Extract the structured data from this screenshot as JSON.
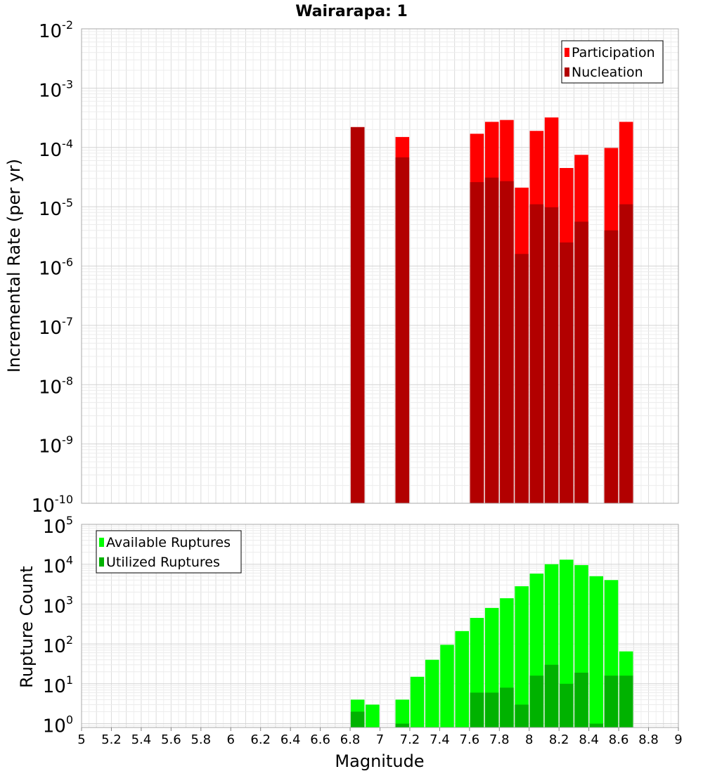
{
  "chart_data": [
    {
      "type": "bar",
      "title": "Wairarapa: 1",
      "xlabel": "",
      "ylabel": "Incremental Rate (per yr)",
      "yscale": "log",
      "ylim": [
        1e-10,
        0.01
      ],
      "xlim": [
        5,
        9
      ],
      "grid": true,
      "legend_position": "top-right",
      "x": [
        6.85,
        7.15,
        7.65,
        7.75,
        7.85,
        7.95,
        8.05,
        8.15,
        8.25,
        8.35,
        8.55,
        8.65
      ],
      "series": [
        {
          "name": "Participation",
          "color": "#ff0000",
          "values": [
            0.00022,
            0.00015,
            0.00017,
            0.00027,
            0.00029,
            2.1e-05,
            0.00019,
            0.00032,
            4.5e-05,
            7.5e-05,
            9.8e-05,
            0.00027
          ]
        },
        {
          "name": "Nucleation",
          "color": "#b20000",
          "values": [
            0.00022,
            6.8e-05,
            2.6e-05,
            3.1e-05,
            2.7e-05,
            1.6e-06,
            1.1e-05,
            9.8e-06,
            2.5e-06,
            5.6e-06,
            4e-06,
            1.1e-05
          ]
        }
      ],
      "y_tick_labels": [
        {
          "base": "10",
          "exp": "-10"
        },
        {
          "base": "10",
          "exp": "-9"
        },
        {
          "base": "10",
          "exp": "-8"
        },
        {
          "base": "10",
          "exp": "-7"
        },
        {
          "base": "10",
          "exp": "-6"
        },
        {
          "base": "10",
          "exp": "-5"
        },
        {
          "base": "10",
          "exp": "-4"
        },
        {
          "base": "10",
          "exp": "-3"
        },
        {
          "base": "10",
          "exp": "-2"
        }
      ]
    },
    {
      "type": "bar",
      "title": "",
      "xlabel": "Magnitude",
      "ylabel": "Rupture Count",
      "yscale": "log",
      "ylim": [
        0.8,
        100000
      ],
      "xlim": [
        5,
        9
      ],
      "grid": true,
      "legend_position": "top-left",
      "x": [
        6.85,
        6.95,
        7.15,
        7.25,
        7.35,
        7.45,
        7.55,
        7.65,
        7.75,
        7.85,
        7.95,
        8.05,
        8.15,
        8.25,
        8.35,
        8.45,
        8.55,
        8.65
      ],
      "series": [
        {
          "name": "Available Ruptures",
          "color": "#00ff00",
          "values": [
            4,
            3,
            4,
            15,
            40,
            95,
            210,
            450,
            800,
            1400,
            2800,
            5800,
            10000,
            13000,
            9500,
            5000,
            4000,
            65
          ]
        },
        {
          "name": "Utilized Ruptures",
          "color": "#00b200",
          "values": [
            2,
            0,
            1,
            0,
            0,
            0,
            0,
            6,
            6,
            8,
            3,
            16,
            30,
            10,
            19,
            1,
            16,
            16
          ]
        }
      ],
      "x_ticks": [
        "5",
        "5.2",
        "5.4",
        "5.6",
        "5.8",
        "6",
        "6.2",
        "6.4",
        "6.6",
        "6.8",
        "7",
        "7.2",
        "7.4",
        "7.6",
        "7.8",
        "8",
        "8.2",
        "8.4",
        "8.6",
        "8.8",
        "9"
      ],
      "y_tick_labels": [
        {
          "base": "10",
          "exp": "0"
        },
        {
          "base": "10",
          "exp": "1"
        },
        {
          "base": "10",
          "exp": "2"
        },
        {
          "base": "10",
          "exp": "3"
        },
        {
          "base": "10",
          "exp": "4"
        },
        {
          "base": "10",
          "exp": "5"
        }
      ]
    }
  ]
}
